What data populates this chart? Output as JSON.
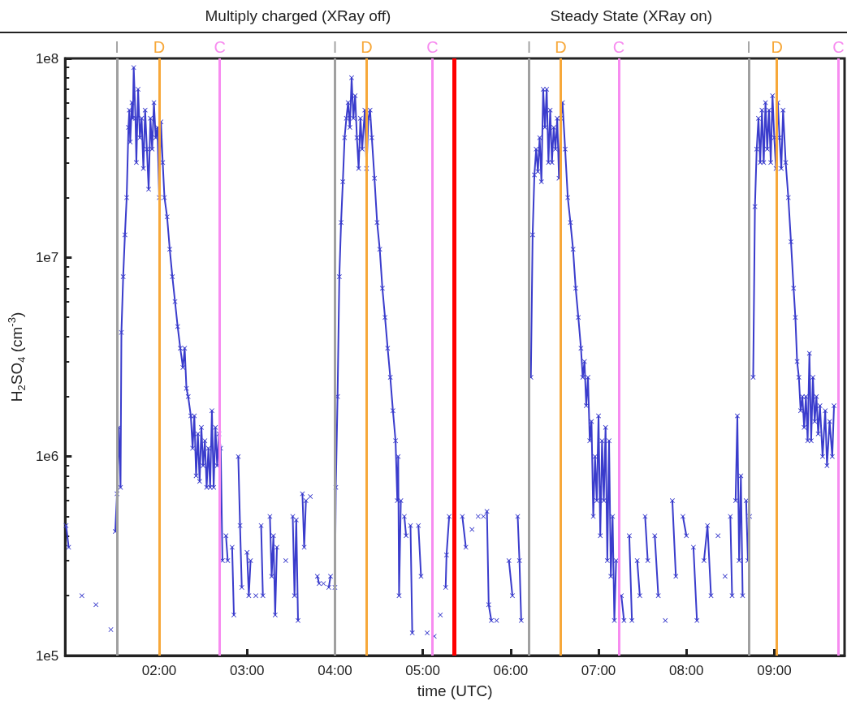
{
  "chart_data": {
    "type": "line",
    "xlabel": "time (UTC)",
    "ylabel": "H$_{2}$SO$_{4}$ (cm$^{-3}$)",
    "annotations": [
      "Multiply charged (XRay off)",
      "Steady State (XRay on)"
    ],
    "x": [
      0.94,
      0.97,
      1.0,
      1.12,
      1.2,
      1.28,
      1.37,
      1.45,
      1.48,
      1.5,
      1.52,
      1.54,
      1.56,
      1.57,
      1.59,
      1.61,
      1.63,
      1.65,
      1.66,
      1.67,
      1.69,
      1.7,
      1.71,
      1.73,
      1.74,
      1.76,
      1.78,
      1.8,
      1.82,
      1.84,
      1.86,
      1.88,
      1.9,
      1.92,
      1.94,
      1.96,
      1.98,
      2.0,
      2.02,
      2.04,
      2.06,
      2.09,
      2.12,
      2.15,
      2.18,
      2.21,
      2.24,
      2.27,
      2.29,
      2.31,
      2.33,
      2.36,
      2.38,
      2.4,
      2.42,
      2.44,
      2.46,
      2.48,
      2.5,
      2.52,
      2.54,
      2.56,
      2.58,
      2.6,
      2.62,
      2.64,
      2.66,
      2.68,
      2.7,
      2.72,
      2.74,
      2.76,
      2.78,
      2.8,
      2.83,
      2.85,
      2.87,
      2.9,
      2.92,
      2.94,
      2.96,
      3.0,
      3.02,
      3.04,
      3.06,
      3.1,
      3.12,
      3.16,
      3.18,
      3.2,
      3.26,
      3.28,
      3.3,
      3.32,
      3.34,
      3.36,
      3.44,
      3.46,
      3.52,
      3.54,
      3.56,
      3.58,
      3.6,
      3.63,
      3.65,
      3.67,
      3.69,
      3.72,
      3.76,
      3.8,
      3.82,
      3.84,
      3.87,
      3.89,
      3.93,
      3.95,
      3.97,
      4.0,
      4.01,
      4.03,
      4.05,
      4.07,
      4.09,
      4.11,
      4.13,
      4.15,
      4.17,
      4.19,
      4.21,
      4.23,
      4.25,
      4.27,
      4.29,
      4.31,
      4.34,
      4.36,
      4.38,
      4.4,
      4.42,
      4.45,
      4.48,
      4.51,
      4.54,
      4.57,
      4.6,
      4.63,
      4.66,
      4.69,
      4.71,
      4.72,
      4.73,
      4.75,
      4.77,
      4.79,
      4.81,
      4.83,
      4.86,
      4.88,
      4.9,
      4.95,
      4.98,
      5.02,
      5.05,
      5.09,
      5.13,
      5.16,
      5.2,
      5.23,
      5.26,
      5.27,
      5.3,
      5.34,
      5.4,
      5.45,
      5.49,
      5.52,
      5.56,
      5.6,
      5.63,
      5.66,
      5.69,
      5.71,
      5.73,
      5.75,
      5.78,
      5.8,
      5.84,
      5.9,
      5.95,
      5.98,
      6.02,
      6.06,
      6.08,
      6.1,
      6.12,
      6.15,
      6.18,
      6.215,
      6.23,
      6.25,
      6.27,
      6.29,
      6.31,
      6.33,
      6.35,
      6.37,
      6.39,
      6.41,
      6.43,
      6.45,
      6.47,
      6.49,
      6.51,
      6.53,
      6.55,
      6.57,
      6.59,
      6.62,
      6.65,
      6.68,
      6.71,
      6.74,
      6.77,
      6.8,
      6.82,
      6.84,
      6.86,
      6.88,
      6.9,
      6.92,
      6.94,
      6.96,
      6.98,
      7.0,
      7.02,
      7.04,
      7.06,
      7.08,
      7.1,
      7.12,
      7.14,
      7.16,
      7.18,
      7.2,
      7.23,
      7.26,
      7.29,
      7.32,
      7.35,
      7.38,
      7.41,
      7.44,
      7.47,
      7.5,
      7.53,
      7.56,
      7.6,
      7.64,
      7.68,
      7.72,
      7.76,
      7.8,
      7.84,
      7.88,
      7.92,
      7.96,
      8.0,
      8.04,
      8.08,
      8.12,
      8.16,
      8.2,
      8.24,
      8.28,
      8.32,
      8.36,
      8.4,
      8.44,
      8.48,
      8.5,
      8.52,
      8.54,
      8.56,
      8.58,
      8.6,
      8.62,
      8.64,
      8.66,
      8.68,
      8.7,
      8.72,
      8.74,
      8.76,
      8.78,
      8.8,
      8.82,
      8.84,
      8.86,
      8.88,
      8.9,
      8.92,
      8.94,
      8.96,
      8.98,
      9.0,
      9.02,
      9.04,
      9.06,
      9.08,
      9.1,
      9.13,
      9.16,
      9.19,
      9.22,
      9.24,
      9.26,
      9.28,
      9.3,
      9.32,
      9.34,
      9.36,
      9.38,
      9.4,
      9.42,
      9.44,
      9.46,
      9.48,
      9.5,
      9.52,
      9.55,
      9.58,
      9.6,
      9.63,
      9.66,
      9.68
    ],
    "series": [
      {
        "color": "#3a3ccc",
        "values": [
          450000,
          350000,
          null,
          200000,
          null,
          180000,
          null,
          135000,
          null,
          420000,
          650000,
          1400000,
          700000,
          4200000,
          8000000,
          13000000,
          20000000,
          45000000,
          55000000,
          38000000,
          60000000,
          50000000,
          90000000,
          50000000,
          30000000,
          70000000,
          40000000,
          50000000,
          28000000,
          55000000,
          35000000,
          22000000,
          50000000,
          35000000,
          60000000,
          40000000,
          45000000,
          20000000,
          48000000,
          30000000,
          20000000,
          16000000,
          11000000,
          8000000,
          6000000,
          4500000,
          3500000,
          2800000,
          3500000,
          2200000,
          2000000,
          1600000,
          1100000,
          1600000,
          800000,
          1300000,
          750000,
          1400000,
          900000,
          1200000,
          700000,
          1100000,
          700000,
          1700000,
          700000,
          1400000,
          900000,
          1300000,
          1100000,
          300000,
          null,
          400000,
          300000,
          null,
          350000,
          160000,
          null,
          1000000,
          450000,
          220000,
          null,
          330000,
          200000,
          300000,
          null,
          200000,
          null,
          450000,
          200000,
          null,
          500000,
          250000,
          400000,
          160000,
          350000,
          null,
          300000,
          null,
          500000,
          200000,
          480000,
          150000,
          null,
          650000,
          350000,
          600000,
          null,
          630000,
          null,
          250000,
          230000,
          null,
          230000,
          null,
          220000,
          250000,
          null,
          220000,
          700000,
          2000000,
          8000000,
          15000000,
          24000000,
          40000000,
          50000000,
          60000000,
          45000000,
          80000000,
          50000000,
          65000000,
          40000000,
          28000000,
          50000000,
          35000000,
          55000000,
          28000000,
          50000000,
          55000000,
          40000000,
          25000000,
          15000000,
          11000000,
          7000000,
          5000000,
          3500000,
          2500000,
          1700000,
          1200000,
          600000,
          1000000,
          200000,
          600000,
          null,
          500000,
          400000,
          null,
          450000,
          130000,
          null,
          450000,
          250000,
          null,
          130000,
          null,
          125000,
          null,
          160000,
          null,
          220000,
          320000,
          500000,
          null,
          null,
          500000,
          350000,
          null,
          430000,
          null,
          500000,
          null,
          500000,
          null,
          530000,
          180000,
          150000,
          null,
          150000,
          null,
          null,
          300000,
          200000,
          null,
          500000,
          300000,
          150000,
          null,
          null,
          null,
          2500000,
          13000000,
          26000000,
          35000000,
          27000000,
          40000000,
          24000000,
          70000000,
          45000000,
          70000000,
          30000000,
          55000000,
          30000000,
          45000000,
          35000000,
          50000000,
          25000000,
          50000000,
          60000000,
          35000000,
          20000000,
          15000000,
          11000000,
          7000000,
          5000000,
          3500000,
          2500000,
          3000000,
          1800000,
          2500000,
          1200000,
          1500000,
          500000,
          1000000,
          600000,
          1600000,
          400000,
          1200000,
          600000,
          1400000,
          300000,
          1200000,
          250000,
          500000,
          150000,
          300000,
          null,
          200000,
          150000,
          null,
          400000,
          150000,
          null,
          300000,
          200000,
          null,
          500000,
          300000,
          null,
          400000,
          200000,
          null,
          150000,
          null,
          600000,
          250000,
          null,
          500000,
          400000,
          null,
          350000,
          150000,
          null,
          300000,
          450000,
          200000,
          null,
          400000,
          null,
          250000,
          null,
          500000,
          200000,
          null,
          600000,
          1600000,
          300000,
          800000,
          200000,
          null,
          600000,
          300000,
          500000,
          null,
          2500000,
          18000000,
          35000000,
          50000000,
          30000000,
          55000000,
          30000000,
          60000000,
          35000000,
          55000000,
          30000000,
          65000000,
          40000000,
          28000000,
          60000000,
          40000000,
          28000000,
          55000000,
          30000000,
          20000000,
          12000000,
          7000000,
          5000000,
          3000000,
          2500000,
          1700000,
          2000000,
          1400000,
          2000000,
          1200000,
          3300000,
          1200000,
          2500000,
          1500000,
          2000000,
          1300000,
          1800000,
          1000000,
          1700000,
          900000,
          1500000,
          1000000,
          1800000
        ]
      }
    ],
    "xlim": [
      0.93,
      9.8
    ],
    "xticks": [
      {
        "value": 2,
        "label": "02:00"
      },
      {
        "value": 3,
        "label": "03:00"
      },
      {
        "value": 4,
        "label": "04:00"
      },
      {
        "value": 5,
        "label": "05:00"
      },
      {
        "value": 6,
        "label": "06:00"
      },
      {
        "value": 7,
        "label": "07:00"
      },
      {
        "value": 8,
        "label": "08:00"
      },
      {
        "value": 9,
        "label": "09:00"
      }
    ],
    "ylim": [
      100000,
      100000000
    ],
    "yticks": [
      {
        "value": 100000,
        "label": "1e5"
      },
      {
        "value": 1000000,
        "label": "1e6"
      },
      {
        "value": 10000000,
        "label": "1e7"
      },
      {
        "value": 100000000,
        "label": "1e8"
      }
    ],
    "log": true,
    "grid": false,
    "marker": "cross",
    "line_style": "solid",
    "ref_lines": [
      {
        "axis": "x",
        "value": 1.525,
        "label": "I",
        "color": "#a0a0a0"
      },
      {
        "axis": "x",
        "value": 2.0,
        "label": "D",
        "color": "#f7a83a"
      },
      {
        "axis": "x",
        "value": 2.695,
        "label": "C",
        "color": "#f78cf0"
      },
      {
        "axis": "x",
        "value": 4.0,
        "label": "I",
        "color": "#a0a0a0"
      },
      {
        "axis": "x",
        "value": 4.358,
        "label": "D",
        "color": "#f7a83a"
      },
      {
        "axis": "x",
        "value": 5.108,
        "label": "C",
        "color": "#f78cf0"
      },
      {
        "axis": "x",
        "value": 5.364,
        "label": null,
        "color": "#ff0000"
      },
      {
        "axis": "x",
        "value": 6.214,
        "label": "I",
        "color": "#a0a0a0"
      },
      {
        "axis": "x",
        "value": 6.57,
        "label": "D",
        "color": "#f7a83a"
      },
      {
        "axis": "x",
        "value": 7.228,
        "label": "C",
        "color": "#f78cf0"
      },
      {
        "axis": "x",
        "value": 8.709,
        "label": "I",
        "color": "#a0a0a0"
      },
      {
        "axis": "x",
        "value": 9.029,
        "label": "D",
        "color": "#f7a83a"
      },
      {
        "axis": "x",
        "value": 9.733,
        "label": "C",
        "color": "#f78cf0"
      }
    ]
  }
}
